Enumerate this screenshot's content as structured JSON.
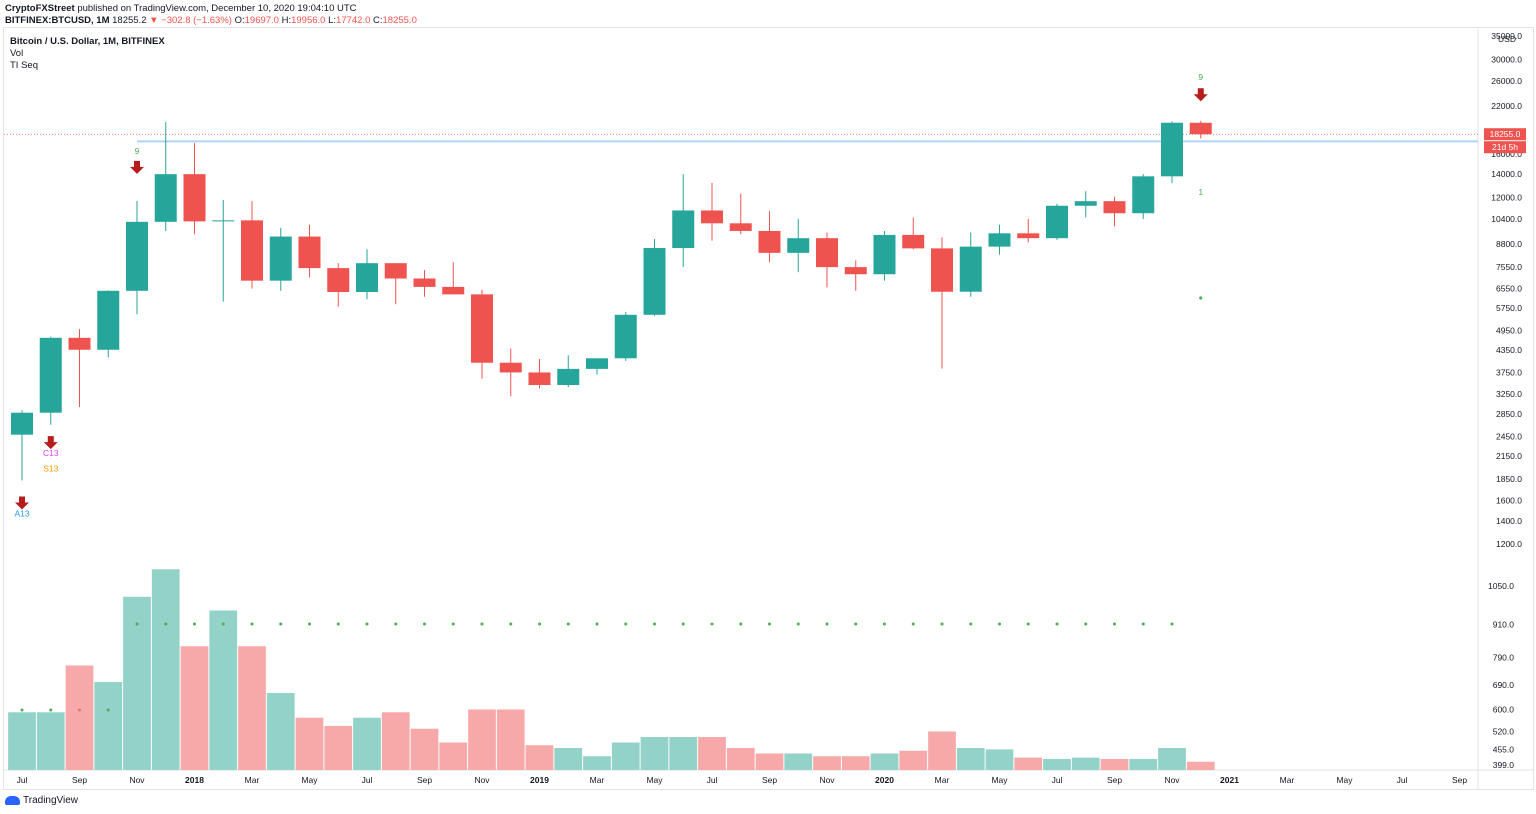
{
  "header": {
    "publisher": "CryptoFXStreet",
    "published_text": "published on TradingView.com, December 10, 2020 19:04:10 UTC"
  },
  "ohlc_bar": {
    "symbol": "BITFINEX:BTCUSD, 1M",
    "last": "18255.2",
    "change": "−302.8 (−1.63%)",
    "open_label": "O:",
    "open": "19697.0",
    "high_label": "H:",
    "high": "19956.0",
    "low_label": "L:",
    "low": "17742.0",
    "close_label": "C:",
    "close": "18255.0"
  },
  "legend": {
    "title": "Bitcoin / U.S. Dollar, 1M, BITFINEX",
    "indicator_1": "Vol",
    "indicator_2": "TI Seq"
  },
  "branding": {
    "logo_text": "TradingView"
  },
  "colors": {
    "up": "#26a69a",
    "down": "#ef5350",
    "vol_up": "#93d2c9",
    "vol_down": "#f6a9a8",
    "resistance": "#aed3f5",
    "arrow": "#b71c1c",
    "grid_label": "#131722",
    "price_line": "#ef5350"
  },
  "chart_data": {
    "type": "candlestick",
    "title": "Bitcoin / U.S. Dollar, 1M, BITFINEX",
    "scale": "log",
    "currency": "USD",
    "yticks": [
      1200.0,
      1400.0,
      1600.0,
      1850.0,
      2150.0,
      2450.0,
      2850.0,
      3250.0,
      3750.0,
      4350.0,
      4950.0,
      5750.0,
      6550.0,
      7550.0,
      8800.0,
      10400.0,
      12000.0,
      14000.0,
      16000.0,
      18000.0,
      22000.0,
      26000.0,
      30000.0,
      35000.0
    ],
    "ytick_labels": [
      "1200.0",
      "1400.0",
      "1600.0",
      "1850.0",
      "2150.0",
      "2450.0",
      "2850.0",
      "3250.0",
      "3750.0",
      "4350.0",
      "4950.0",
      "5750.0",
      "6550.0",
      "7550.0",
      "8800.0",
      "10400.0",
      "12000.0",
      "14000.0",
      "16000.0",
      "18000.0",
      "22000.0",
      "26000.0",
      "30000.0",
      "35000.0"
    ],
    "ylim": [
      1130,
      36000
    ],
    "vol_tick_labels": [
      "399.0",
      "455.0",
      "520.0",
      "600.0",
      "690.0",
      "790.0",
      "910.0",
      "1050.0"
    ],
    "vol_ticks": [
      399,
      455,
      520,
      600,
      690,
      790,
      910,
      1050
    ],
    "x_labels": [
      "Jul",
      "Sep",
      "Nov",
      "2018",
      "Mar",
      "May",
      "Jul",
      "Sep",
      "Nov",
      "2019",
      "Mar",
      "May",
      "Jul",
      "Sep",
      "Nov",
      "2020",
      "Mar",
      "May",
      "Jul",
      "Sep",
      "Nov",
      "2021",
      "Mar",
      "May",
      "Jul",
      "Sep"
    ],
    "x_label_months": [
      0,
      2,
      4,
      6,
      8,
      10,
      12,
      14,
      16,
      18,
      20,
      22,
      24,
      26,
      28,
      30,
      32,
      34,
      36,
      38,
      40,
      42,
      44,
      46,
      48,
      50
    ],
    "candles": [
      {
        "o": 2480,
        "h": 2920,
        "l": 1830,
        "c": 2870
      },
      {
        "o": 2870,
        "h": 4760,
        "l": 2650,
        "c": 4720
      },
      {
        "o": 4720,
        "h": 5000,
        "l": 2980,
        "c": 4360
      },
      {
        "o": 4360,
        "h": 6470,
        "l": 4140,
        "c": 6450
      },
      {
        "o": 6450,
        "h": 11700,
        "l": 5520,
        "c": 10200
      },
      {
        "o": 10200,
        "h": 19800,
        "l": 9600,
        "c": 14000
      },
      {
        "o": 14000,
        "h": 17200,
        "l": 9400,
        "c": 10230
      },
      {
        "o": 10230,
        "h": 11800,
        "l": 6000,
        "c": 10300
      },
      {
        "o": 10300,
        "h": 11700,
        "l": 6550,
        "c": 6900
      },
      {
        "o": 6900,
        "h": 9800,
        "l": 6450,
        "c": 9250
      },
      {
        "o": 9250,
        "h": 10000,
        "l": 7050,
        "c": 7500
      },
      {
        "o": 7500,
        "h": 7750,
        "l": 5800,
        "c": 6400
      },
      {
        "o": 6400,
        "h": 8500,
        "l": 6100,
        "c": 7750
      },
      {
        "o": 7750,
        "h": 7750,
        "l": 5900,
        "c": 7000
      },
      {
        "o": 7000,
        "h": 7400,
        "l": 6200,
        "c": 6620
      },
      {
        "o": 6620,
        "h": 7800,
        "l": 6300,
        "c": 6300
      },
      {
        "o": 6300,
        "h": 6500,
        "l": 3600,
        "c": 4000
      },
      {
        "o": 4000,
        "h": 4400,
        "l": 3200,
        "c": 3750
      },
      {
        "o": 3750,
        "h": 4100,
        "l": 3370,
        "c": 3450
      },
      {
        "o": 3450,
        "h": 4200,
        "l": 3400,
        "c": 3840
      },
      {
        "o": 3840,
        "h": 4100,
        "l": 3700,
        "c": 4120
      },
      {
        "o": 4120,
        "h": 5600,
        "l": 4050,
        "c": 5500
      },
      {
        "o": 5500,
        "h": 9100,
        "l": 5450,
        "c": 8570
      },
      {
        "o": 8570,
        "h": 14000,
        "l": 7550,
        "c": 11000
      },
      {
        "o": 11000,
        "h": 13200,
        "l": 9000,
        "c": 10100
      },
      {
        "o": 10100,
        "h": 12300,
        "l": 9400,
        "c": 9600
      },
      {
        "o": 9600,
        "h": 10950,
        "l": 7800,
        "c": 8300
      },
      {
        "o": 8300,
        "h": 10400,
        "l": 7300,
        "c": 9150
      },
      {
        "o": 9150,
        "h": 9500,
        "l": 6600,
        "c": 7550
      },
      {
        "o": 7550,
        "h": 7900,
        "l": 6450,
        "c": 7200
      },
      {
        "o": 7200,
        "h": 9600,
        "l": 6900,
        "c": 9350
      },
      {
        "o": 9350,
        "h": 10500,
        "l": 8500,
        "c": 8550
      },
      {
        "o": 8550,
        "h": 9200,
        "l": 3850,
        "c": 6410
      },
      {
        "o": 6410,
        "h": 9500,
        "l": 6200,
        "c": 8650
      },
      {
        "o": 8650,
        "h": 10000,
        "l": 8200,
        "c": 9450
      },
      {
        "o": 9450,
        "h": 10400,
        "l": 8900,
        "c": 9150
      },
      {
        "o": 9150,
        "h": 11500,
        "l": 9050,
        "c": 11350
      },
      {
        "o": 11350,
        "h": 12500,
        "l": 10500,
        "c": 11700
      },
      {
        "o": 11700,
        "h": 12050,
        "l": 9900,
        "c": 10800
      },
      {
        "o": 10800,
        "h": 14000,
        "l": 10400,
        "c": 13800
      },
      {
        "o": 13800,
        "h": 19900,
        "l": 13200,
        "c": 19700
      },
      {
        "o": 19697,
        "h": 19956,
        "l": 17742,
        "c": 18255
      }
    ],
    "volume": [
      590,
      590,
      760,
      700,
      1010,
      1110,
      830,
      960,
      830,
      660,
      570,
      540,
      570,
      590,
      530,
      480,
      600,
      600,
      470,
      460,
      430,
      480,
      500,
      500,
      500,
      460,
      440,
      440,
      430,
      430,
      440,
      450,
      520,
      460,
      455,
      425,
      420,
      425,
      420,
      420,
      460,
      410
    ],
    "resistance_level": 17400,
    "resistance_from_month": 4,
    "last_price_label": "18255.0",
    "countdown_label": "21d 5h",
    "annotations": [
      {
        "month": 0,
        "type": "arrow_down",
        "price": 1560
      },
      {
        "month": 0,
        "type": "text",
        "text": "A13",
        "price": 1440,
        "color": "#2196f3"
      },
      {
        "month": 1,
        "type": "arrow_down",
        "price": 2330
      },
      {
        "month": 1,
        "type": "text",
        "text": "C13",
        "price": 2150,
        "color": "#e040fb"
      },
      {
        "month": 1,
        "type": "text",
        "text": "S13",
        "price": 1940,
        "color": "#ff9800"
      },
      {
        "month": 4,
        "type": "text",
        "text": "9",
        "price": 16000,
        "color": "#4caf50"
      },
      {
        "month": 4,
        "type": "arrow_down",
        "price": 14500
      },
      {
        "month": 41,
        "type": "text",
        "text": "9",
        "price": 26200,
        "color": "#4caf50"
      },
      {
        "month": 41,
        "type": "arrow_down",
        "price": 23500
      },
      {
        "month": 41,
        "type": "text",
        "text": "1",
        "price": 12200,
        "color": "#4caf50"
      },
      {
        "month": 41,
        "type": "dot",
        "price": 6150,
        "color": "#4caf50"
      }
    ],
    "vol_dots_from": 4,
    "vol_dots_to": 40,
    "vol_dots_low": [
      0,
      1,
      2,
      3
    ]
  }
}
